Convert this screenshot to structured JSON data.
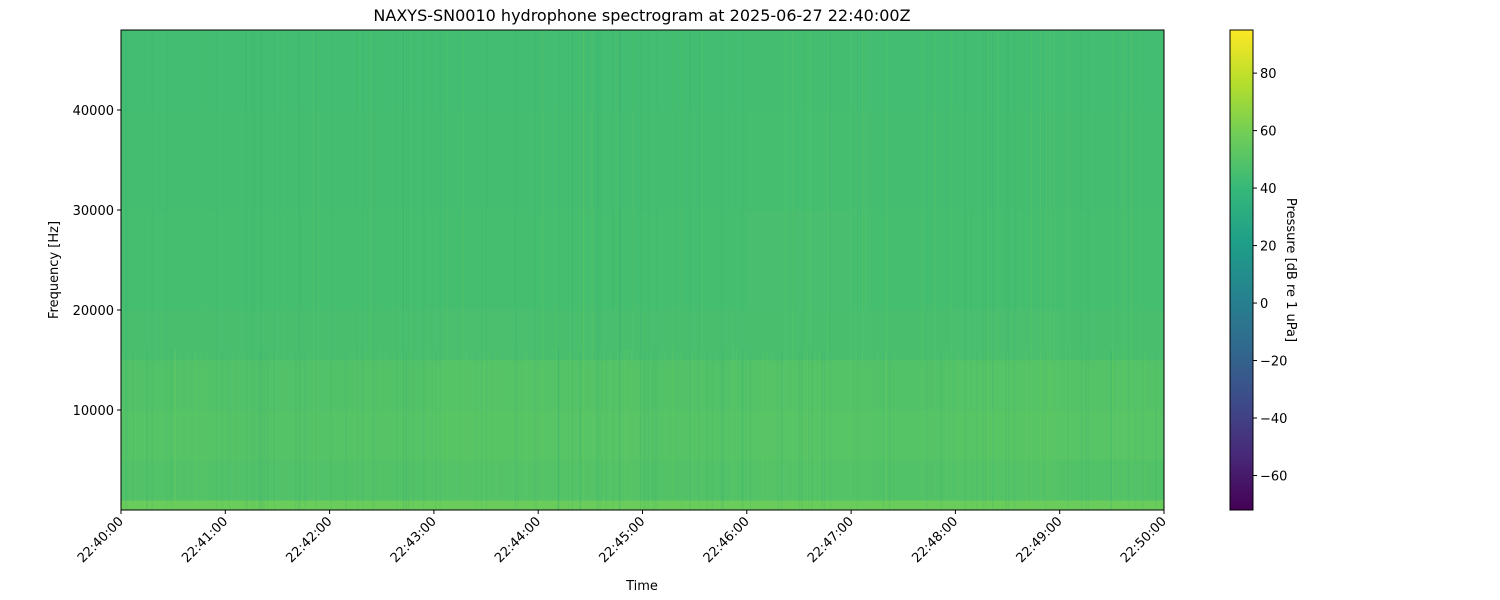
{
  "chart_data": {
    "type": "heatmap",
    "title": "NAXYS-SN0010 hydrophone spectrogram at 2025-06-27 22:40:00Z",
    "xlabel": "Time",
    "ylabel": "Frequency [Hz]",
    "colorbar_label": "Pressure [dB re 1 uPa]",
    "colormap": "viridis",
    "x_tick_labels": [
      "22:40:00",
      "22:41:00",
      "22:42:00",
      "22:43:00",
      "22:44:00",
      "22:45:00",
      "22:46:00",
      "22:47:00",
      "22:48:00",
      "22:49:00",
      "22:50:00"
    ],
    "y_ticks": [
      10000,
      20000,
      30000,
      40000
    ],
    "y_tick_labels": [
      "10000",
      "20000",
      "30000",
      "40000"
    ],
    "ylim": [
      0,
      48000
    ],
    "colorbar_ticks": [
      -60,
      -40,
      -20,
      0,
      20,
      40,
      60,
      80
    ],
    "colorbar_tick_labels": [
      "−60",
      "−40",
      "−20",
      "0",
      "20",
      "40",
      "60",
      "80"
    ],
    "clim": [
      -72,
      95
    ],
    "frequency_bin_edges_hz": [
      0,
      1000,
      5000,
      10000,
      15000,
      20000,
      30000,
      40000,
      48000
    ],
    "time_bins": [
      "22:40",
      "22:41",
      "22:42",
      "22:43",
      "22:44",
      "22:45",
      "22:46",
      "22:47",
      "22:48",
      "22:49"
    ],
    "levels_db": [
      [
        57,
        49,
        50,
        49,
        46,
        45,
        44.5,
        44
      ],
      [
        57,
        48.5,
        49.5,
        48.5,
        46,
        45,
        44.5,
        44
      ],
      [
        57,
        49,
        50,
        49,
        46,
        45,
        44.5,
        44
      ],
      [
        57,
        49.5,
        51,
        50,
        46.5,
        45,
        44.5,
        44
      ],
      [
        57,
        49.5,
        50.5,
        49.5,
        46,
        45,
        44.5,
        44
      ],
      [
        57,
        49,
        50,
        49,
        46,
        45,
        44.5,
        44
      ],
      [
        57,
        49.5,
        50.5,
        49.5,
        46,
        45.5,
        45,
        44.5
      ],
      [
        57,
        49,
        50,
        49,
        46,
        45,
        44.5,
        44
      ],
      [
        57,
        49.5,
        51,
        50,
        46.5,
        45,
        44.5,
        44
      ],
      [
        57,
        49,
        50.5,
        49.5,
        46,
        45,
        44.5,
        44
      ]
    ]
  }
}
